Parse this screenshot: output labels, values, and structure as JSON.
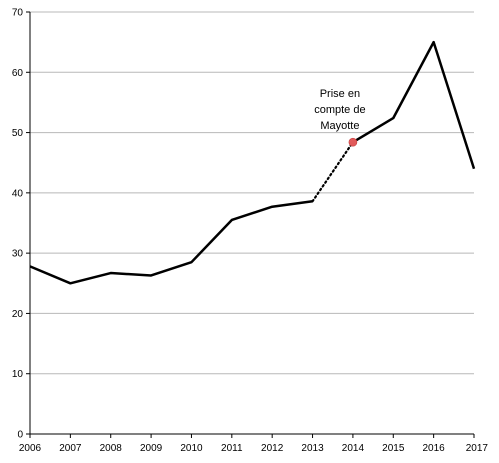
{
  "chart_data": {
    "type": "line",
    "title": "",
    "xlabel": "",
    "ylabel": "",
    "x": [
      2006,
      2007,
      2008,
      2009,
      2010,
      2011,
      2012,
      2013,
      2014,
      2015,
      2016,
      2017
    ],
    "series": [
      {
        "values": [
          27.8,
          25.0,
          26.7,
          26.3,
          28.5,
          35.5,
          37.7,
          38.6,
          48.4,
          52.4,
          65.0,
          44.0
        ]
      }
    ],
    "xlim": [
      2006,
      2017
    ],
    "ylim": [
      0,
      70
    ],
    "yticks": [
      0,
      10,
      20,
      30,
      40,
      50,
      60,
      70
    ],
    "xtick_labels": [
      "2006",
      "2007",
      "2008",
      "2009",
      "2010",
      "2011",
      "2012",
      "2013",
      "2014",
      "2015",
      "2016",
      "2017"
    ],
    "ytick_labels": [
      "0",
      "10",
      "20",
      "30",
      "40",
      "50",
      "60",
      "70"
    ],
    "grid": "horizontal",
    "legend": "none",
    "break": {
      "from_x": 2013,
      "to_x": 2014,
      "style": "dotted"
    },
    "highlight_point": {
      "x": 2014,
      "y": 48.4,
      "color": "#e05a5a"
    },
    "annotation": {
      "lines": [
        "Prise en",
        "compte de",
        "Mayotte"
      ],
      "x": 2014
    },
    "colors": {
      "line": "#000000",
      "grid": "#b8b8b8",
      "axis": "#000000",
      "marker": "#e05a5a"
    }
  }
}
